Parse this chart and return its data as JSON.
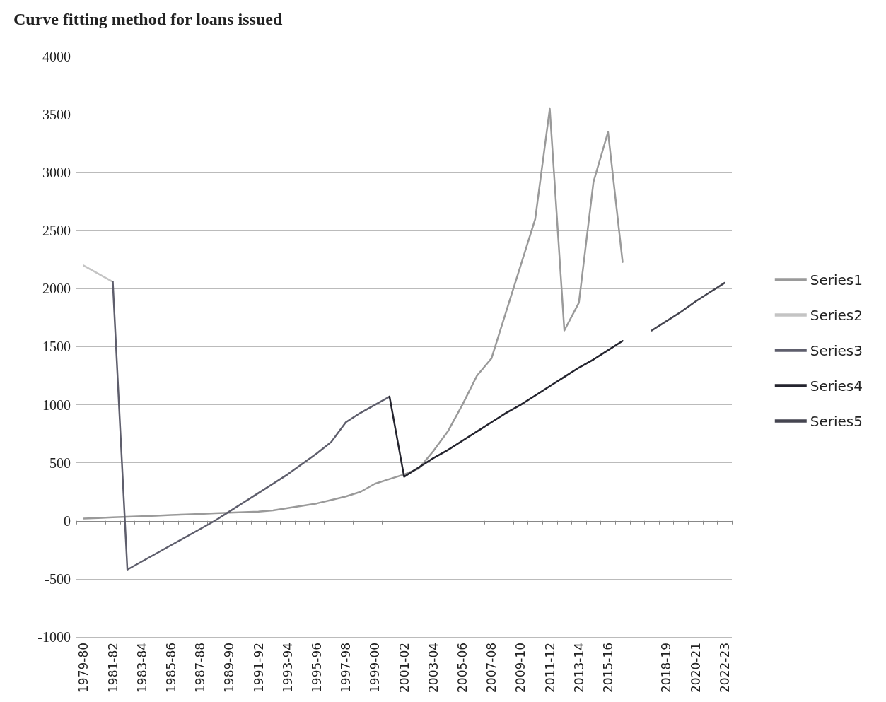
{
  "chart_data": {
    "type": "line",
    "title": "Curve fitting method for loans issued",
    "categories": [
      "1979-80",
      null,
      "1981-82",
      null,
      "1983-84",
      null,
      "1985-86",
      null,
      "1987-88",
      null,
      "1989-90",
      null,
      "1991-92",
      null,
      "1993-94",
      null,
      "1995-96",
      null,
      "1997-98",
      null,
      "1999-00",
      null,
      "2001-02",
      null,
      "2003-04",
      null,
      "2005-06",
      null,
      "2007-08",
      null,
      "2009-10",
      null,
      "2011-12",
      null,
      "2013-14",
      null,
      "2015-16",
      null,
      null,
      null,
      "2018-19",
      null,
      "2020-21",
      null,
      "2022-23"
    ],
    "series": [
      {
        "name": "Series1",
        "color": "#9a9a9a",
        "values": [
          20,
          25,
          30,
          35,
          40,
          45,
          50,
          55,
          60,
          65,
          70,
          75,
          80,
          90,
          110,
          130,
          150,
          180,
          210,
          250,
          320,
          360,
          400,
          450,
          600,
          770,
          1000,
          1250,
          1400,
          1800,
          2200,
          2600,
          3550,
          1640,
          1880,
          2920,
          3350,
          2230,
          null,
          null,
          null,
          null,
          null,
          null,
          null
        ]
      },
      {
        "name": "Series2",
        "color": "#c4c4c4",
        "values": [
          2200,
          2130,
          2060,
          null,
          null,
          null,
          null,
          null,
          null,
          null,
          null,
          null,
          null,
          null,
          null,
          null,
          null,
          null,
          null,
          null,
          null,
          null,
          null,
          null,
          null,
          null,
          null,
          null,
          null,
          null,
          null,
          null,
          null,
          null,
          null,
          null,
          null,
          null,
          null,
          null,
          null,
          null,
          null,
          null,
          null
        ]
      },
      {
        "name": "Series3",
        "color": "#5e5e6c",
        "values": [
          null,
          null,
          2060,
          -420,
          -350,
          -280,
          -210,
          -140,
          -70,
          0,
          80,
          160,
          240,
          320,
          400,
          490,
          580,
          680,
          850,
          930,
          1000,
          1070,
          null,
          null,
          null,
          null,
          null,
          null,
          null,
          null,
          null,
          null,
          null,
          null,
          null,
          null,
          null,
          null,
          null,
          null,
          null,
          null,
          null,
          null,
          null
        ]
      },
      {
        "name": "Series4",
        "color": "#24242e",
        "values": [
          null,
          null,
          null,
          null,
          null,
          null,
          null,
          null,
          null,
          null,
          null,
          null,
          null,
          null,
          null,
          null,
          null,
          null,
          null,
          null,
          null,
          1070,
          380,
          460,
          540,
          610,
          690,
          770,
          850,
          930,
          1000,
          1080,
          1160,
          1240,
          1320,
          1390,
          1470,
          1550,
          null,
          null,
          null,
          null,
          null,
          null,
          null
        ]
      },
      {
        "name": "Series5",
        "color": "#454550",
        "values": [
          null,
          null,
          null,
          null,
          null,
          null,
          null,
          null,
          null,
          null,
          null,
          null,
          null,
          null,
          null,
          null,
          null,
          null,
          null,
          null,
          null,
          null,
          null,
          null,
          null,
          null,
          null,
          null,
          null,
          null,
          null,
          null,
          null,
          null,
          null,
          null,
          null,
          null,
          null,
          1640,
          1720,
          1800,
          1890,
          1970,
          2050
        ]
      }
    ],
    "ylim": [
      -1000,
      4000
    ],
    "yticks": [
      -1000,
      -500,
      0,
      500,
      1000,
      1500,
      2000,
      2500,
      3000,
      3500,
      4000
    ],
    "grid": "y",
    "legend": "right",
    "marker": "none",
    "line_style": "solid"
  }
}
